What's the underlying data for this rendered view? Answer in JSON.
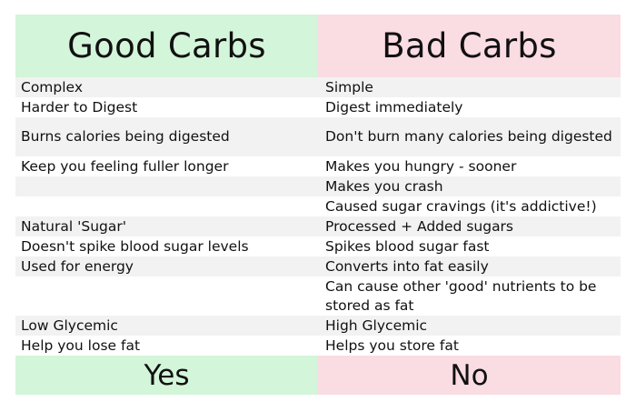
{
  "header": {
    "good_title": "Good Carbs",
    "bad_title": "Bad Carbs"
  },
  "rows": [
    {
      "good": "Complex",
      "bad": "Simple"
    },
    {
      "good": "Harder to Digest",
      "bad": "Digest immediately"
    },
    {
      "good": "Burns calories being digested",
      "bad": "Don't burn many calories being digested"
    },
    {
      "good": "Keep you feeling fuller longer",
      "bad": "Makes you hungry - sooner"
    },
    {
      "good": "",
      "bad": "Makes you crash"
    },
    {
      "good": "",
      "bad": "Caused sugar cravings (it's addictive!)"
    },
    {
      "good": "Natural 'Sugar'",
      "bad": "Processed + Added sugars"
    },
    {
      "good": "Doesn't spike blood sugar levels",
      "bad": "Spikes blood sugar fast"
    },
    {
      "good": "Used for energy",
      "bad": "Converts into fat easily"
    },
    {
      "good": "",
      "bad": "Can cause other 'good' nutrients to be stored as fat"
    },
    {
      "good": "Low Glycemic",
      "bad": "High Glycemic"
    },
    {
      "good": "Help you lose fat",
      "bad": "Helps you store fat"
    }
  ],
  "footer": {
    "good_verdict": "Yes",
    "bad_verdict": "No"
  },
  "colors": {
    "good_accent": "#d3f5d9",
    "bad_accent": "#fadce3",
    "row_shade": "#f2f2f2"
  }
}
